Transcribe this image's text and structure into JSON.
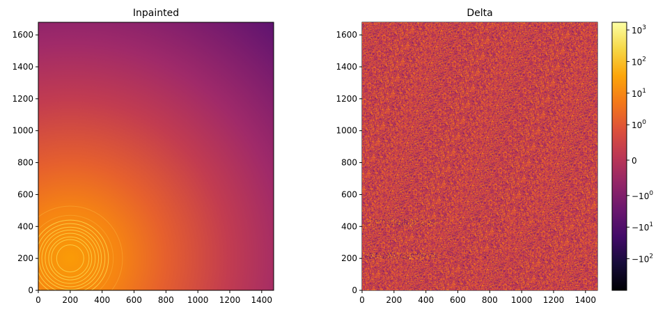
{
  "chart_data": [
    {
      "type": "heatmap",
      "title": "Inpainted",
      "colormap": "inferno",
      "xlim": [
        0,
        1475
      ],
      "ylim": [
        0,
        1679
      ],
      "xticks": [
        0,
        200,
        400,
        600,
        800,
        1000,
        1200,
        1400
      ],
      "yticks": [
        0,
        200,
        400,
        600,
        800,
        1000,
        1200,
        1400,
        1600
      ],
      "ring_center": [
        200,
        200
      ],
      "ring_radii": [
        85,
        118,
        135,
        157,
        178,
        196,
        218,
        240,
        270,
        328
      ],
      "grid": false
    },
    {
      "type": "heatmap",
      "title": "Delta",
      "colormap": "inferno",
      "color_scale": "symlog",
      "xlim": [
        0,
        1475
      ],
      "ylim": [
        0,
        1679
      ],
      "xticks": [
        0,
        200,
        400,
        600,
        800,
        1000,
        1200,
        1400
      ],
      "yticks": [
        0,
        200,
        400,
        600,
        800,
        1000,
        1200,
        1400,
        1600
      ],
      "grid": false,
      "colorbar": {
        "range": [
          -1000,
          1750
        ],
        "ticks": [
          {
            "value": 1000,
            "base": "10",
            "exp": "3",
            "sign": ""
          },
          {
            "value": 100,
            "base": "10",
            "exp": "2",
            "sign": ""
          },
          {
            "value": 10,
            "base": "10",
            "exp": "1",
            "sign": ""
          },
          {
            "value": 1,
            "base": "10",
            "exp": "0",
            "sign": ""
          },
          {
            "value": 0,
            "base": "0",
            "exp": "",
            "sign": ""
          },
          {
            "value": -1,
            "base": "10",
            "exp": "0",
            "sign": "−"
          },
          {
            "value": -10,
            "base": "10",
            "exp": "1",
            "sign": "−"
          },
          {
            "value": -100,
            "base": "10",
            "exp": "2",
            "sign": "−"
          }
        ]
      }
    }
  ]
}
